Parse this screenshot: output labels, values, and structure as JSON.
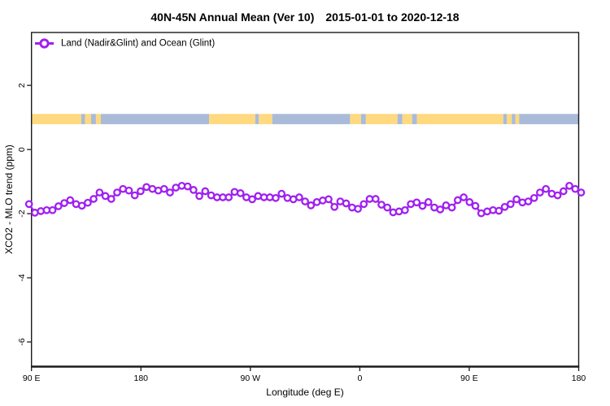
{
  "title_left": "40N-45N Annual Mean (Ver 10)",
  "title_right": "2015-01-01 to 2020-12-18",
  "legend": {
    "label": "Land (Nadir&Glint) and Ocean (Glint)",
    "marker": "open-circle-on-line"
  },
  "y_axis": {
    "label": "XCO2 - MLO trend (ppm)",
    "tick_labels": [
      "2",
      "0",
      "-2",
      "-4",
      "-6"
    ],
    "tick_values": [
      2,
      0,
      -2,
      -4,
      -6
    ]
  },
  "x_axis": {
    "label": "Longitude (deg E)",
    "ticks": [
      {
        "value": 90,
        "label": "90 E"
      },
      {
        "value": 180,
        "label": "180"
      },
      {
        "value": 270,
        "label": "90 W"
      },
      {
        "value": 360,
        "label": "0"
      },
      {
        "value": 450,
        "label": "90 E"
      },
      {
        "value": 540,
        "label": "180"
      }
    ]
  },
  "colors": {
    "series": "#A020F0",
    "marker_fill": "#FFFFFF",
    "land_band": "#FFD980",
    "ocean_band": "#A9BBD8",
    "frame": "#1A1A1A",
    "text": "#000000",
    "background": "#FFFFFF"
  },
  "chart_data": {
    "type": "line",
    "title": "40N-45N Annual Mean (Ver 10)   2015-01-01 to 2020-12-18",
    "xlabel": "Longitude (deg E)",
    "ylabel": "XCO2 - MLO trend (ppm)",
    "xlim": [
      88,
      542
    ],
    "ylim": [
      -6.77,
      3.65
    ],
    "grid": false,
    "legend_position": "top-left-inside",
    "series": [
      {
        "name": "Land (Nadir&Glint) and Ocean (Glint)",
        "marker": "open-circle",
        "lon_start": 88,
        "lon_end": 542,
        "values": [
          -1.7,
          -1.97,
          -1.92,
          -1.89,
          -1.89,
          -1.77,
          -1.67,
          -1.58,
          -1.7,
          -1.75,
          -1.66,
          -1.54,
          -1.34,
          -1.45,
          -1.54,
          -1.34,
          -1.23,
          -1.28,
          -1.43,
          -1.3,
          -1.17,
          -1.23,
          -1.28,
          -1.23,
          -1.34,
          -1.19,
          -1.13,
          -1.15,
          -1.26,
          -1.45,
          -1.3,
          -1.43,
          -1.49,
          -1.49,
          -1.49,
          -1.32,
          -1.36,
          -1.49,
          -1.55,
          -1.45,
          -1.49,
          -1.49,
          -1.51,
          -1.38,
          -1.51,
          -1.55,
          -1.49,
          -1.62,
          -1.74,
          -1.64,
          -1.59,
          -1.55,
          -1.79,
          -1.62,
          -1.68,
          -1.81,
          -1.85,
          -1.7,
          -1.54,
          -1.54,
          -1.72,
          -1.81,
          -1.96,
          -1.93,
          -1.89,
          -1.7,
          -1.65,
          -1.76,
          -1.64,
          -1.81,
          -1.87,
          -1.74,
          -1.81,
          -1.58,
          -1.49,
          -1.64,
          -1.76,
          -1.99,
          -1.93,
          -1.89,
          -1.91,
          -1.79,
          -1.7,
          -1.55,
          -1.65,
          -1.62,
          -1.51,
          -1.34,
          -1.23,
          -1.38,
          -1.43,
          -1.3,
          -1.13,
          -1.23,
          -1.34
        ]
      }
    ],
    "land_ocean_band": {
      "y_top": 1.11,
      "y_bottom": 0.79,
      "segments": [
        [
          90,
          131,
          "land"
        ],
        [
          131,
          134,
          "ocean"
        ],
        [
          134,
          139,
          "land"
        ],
        [
          139,
          143,
          "ocean"
        ],
        [
          143,
          147,
          "land"
        ],
        [
          147,
          236,
          "ocean"
        ],
        [
          236,
          274,
          "land"
        ],
        [
          274,
          277,
          "ocean"
        ],
        [
          277,
          288,
          "land"
        ],
        [
          288,
          352,
          "ocean"
        ],
        [
          352,
          361,
          "land"
        ],
        [
          361,
          365,
          "ocean"
        ],
        [
          365,
          391,
          "land"
        ],
        [
          391,
          395,
          "ocean"
        ],
        [
          395,
          403,
          "land"
        ],
        [
          403,
          407,
          "ocean"
        ],
        [
          407,
          478,
          "land"
        ],
        [
          478,
          481,
          "ocean"
        ],
        [
          481,
          485,
          "land"
        ],
        [
          485,
          488,
          "ocean"
        ],
        [
          488,
          491,
          "land"
        ],
        [
          491,
          540,
          "ocean"
        ]
      ]
    }
  }
}
